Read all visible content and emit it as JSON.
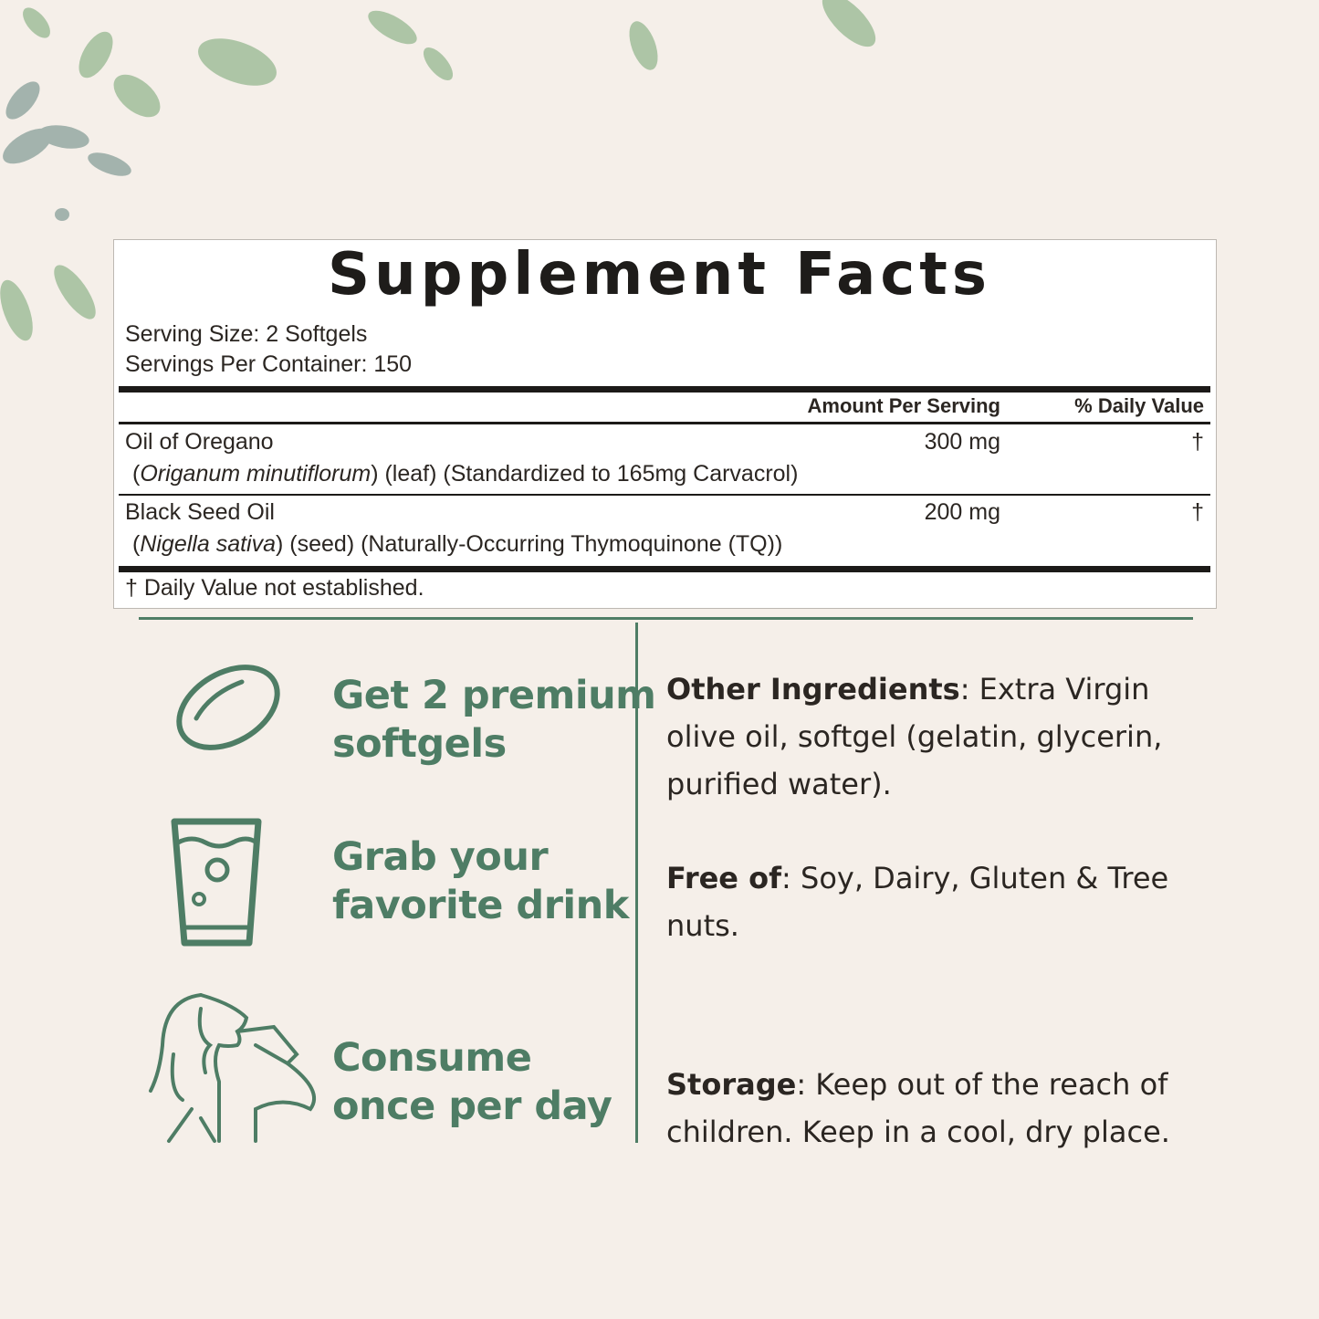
{
  "label": {
    "title": "Supplement Facts",
    "serving_size": "Serving Size: 2 Softgels",
    "servings_per_container": "Servings Per Container: 150",
    "col_amount": "Amount Per Serving",
    "col_dv": "% Daily Value",
    "rows": [
      {
        "name": "Oil of Oregano",
        "latin": "Origanum minutiflorum",
        "detail": ") (leaf) (Standardized to 165mg Carvacrol)",
        "amount": "300 mg",
        "dv": "†"
      },
      {
        "name": "Black Seed Oil",
        "latin": "Nigella sativa",
        "detail": ") (seed) (Naturally-Occurring Thymoquinone (TQ))",
        "amount": "200 mg",
        "dv": "†"
      }
    ],
    "footnote": "† Daily Value not established."
  },
  "steps": [
    {
      "icon": "softgel-icon",
      "line1": "Get 2 premium",
      "line2": "softgels"
    },
    {
      "icon": "glass-icon",
      "line1": "Grab your",
      "line2": "favorite drink"
    },
    {
      "icon": "person-drinking-icon",
      "line1": "Consume",
      "line2": "once per day"
    }
  ],
  "info": [
    {
      "label": "Other Ingredients",
      "text": ": Extra Virgin olive oil, softgel (gelatin, glycerin, purified water)."
    },
    {
      "label": "Free of",
      "text": ": Soy, Dairy, Gluten & Tree nuts."
    },
    {
      "label": "Storage",
      "text": ": Keep out of the reach of children. Keep in a cool, dry place."
    }
  ],
  "colors": {
    "accent": "#4e7d65",
    "background": "#f5efe9",
    "text": "#2b2622"
  }
}
